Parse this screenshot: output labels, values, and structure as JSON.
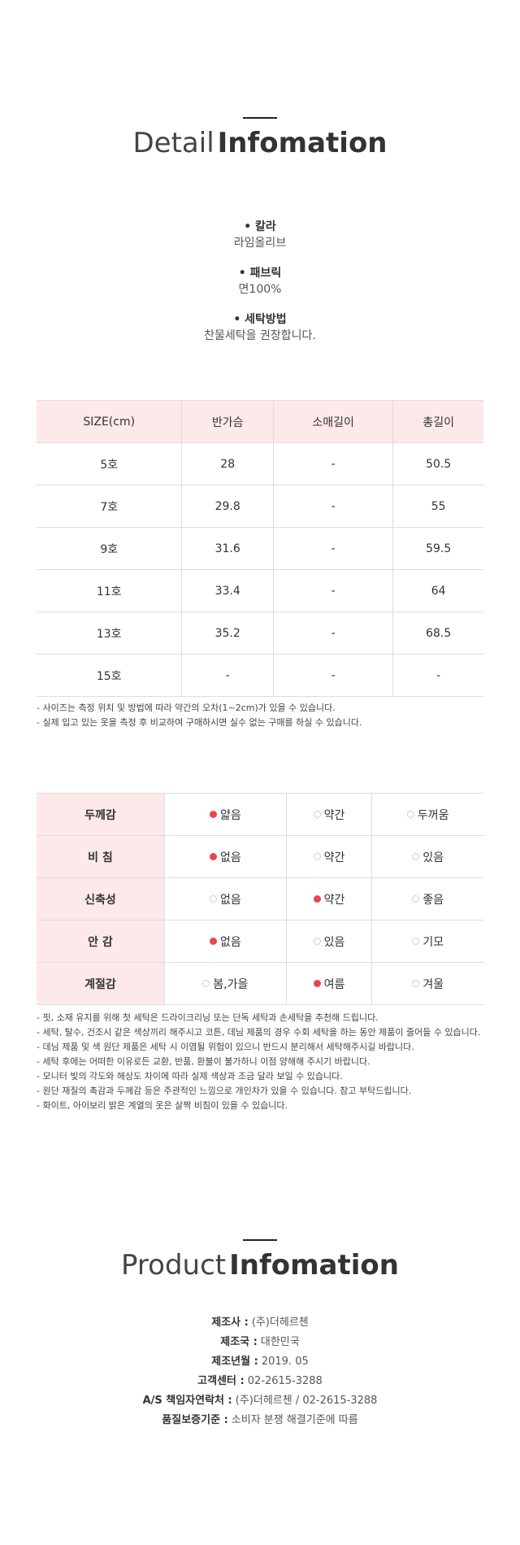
{
  "detail_header": {
    "title_light": "Detail",
    "title_bold": "Infomation"
  },
  "details": [
    {
      "label": "칼라",
      "value": "라임올리브"
    },
    {
      "label": "패브릭",
      "value": "면100%"
    },
    {
      "label": "세탁방법",
      "value": "찬물세탁을 권장합니다."
    }
  ],
  "size_table": {
    "header": [
      "SIZE(cm)",
      "반가슴",
      "소매길이",
      "총길이"
    ],
    "rows": [
      [
        "5호",
        "28",
        "-",
        "50.5"
      ],
      [
        "7호",
        "29.8",
        "-",
        "55"
      ],
      [
        "9호",
        "31.6",
        "-",
        "59.5"
      ],
      [
        "11호",
        "33.4",
        "-",
        "64"
      ],
      [
        "13호",
        "35.2",
        "-",
        "68.5"
      ],
      [
        "15호",
        "-",
        "-",
        "-"
      ]
    ]
  },
  "size_notes": [
    "- 사이즈는 측정 위치 및 방법에 따라 약간의 오차(1~2cm)가 있을 수 있습니다.",
    "- 실제 입고 있는 옷을 측정 후 비교하여 구매하시면 실수 없는 구매를 하실 수 있습니다."
  ],
  "feature_table": {
    "rows": [
      {
        "label": "두께감",
        "options": [
          "얇음",
          "약간",
          "두꺼움"
        ],
        "selected": 0
      },
      {
        "label": "비  침",
        "options": [
          "없음",
          "약간",
          "있음"
        ],
        "selected": 0
      },
      {
        "label": "신축성",
        "options": [
          "없음",
          "약간",
          "좋음"
        ],
        "selected": 1
      },
      {
        "label": "안  감",
        "options": [
          "없음",
          "있음",
          "기모"
        ],
        "selected": 0
      },
      {
        "label": "계절감",
        "options": [
          "봄,가을",
          "여름",
          "겨울"
        ],
        "selected": 1
      }
    ]
  },
  "care_notes": [
    "- 핏, 소재 유지를 위해 첫 세탁은 드라이크리닝 또는 단독 세탁과 손세탁을 추천해 드립니다.",
    "- 세탁, 탈수, 건조시 같은 색상끼리 해주시고 코튼, 데님 제품의 경우 수회 세탁을 하는 동안 제품이 줄어들 수 있습니다.",
    "- 데님 제품 및 색 원단 제품은 세탁 시 이염될 위험이 있으니 반드시 분리해서 세탁해주시길 바랍니다.",
    "- 세탁 후에는 어떠한 이유로든 교환, 반품, 환불이 불가하니 이점 양해해 주시기 바랍니다.",
    "- 모니터 빛의 각도와 해상도 차이에 따라 실제 색상과 조금 달라 보일 수 있습니다.",
    "- 원단 재질의 촉감과 두께감 등은 주관적인 느낌으로 개인차가 있을 수 있습니다. 참고 부탁드립니다.",
    "- 화이트, 아이보리 밝은 계열의 옷은 살짝 비침이 있을 수 있습니다."
  ],
  "product_header": {
    "title_light": "Product",
    "title_bold": "Infomation"
  },
  "product_info": [
    {
      "label": "제조사 :",
      "value": "(주)더헤르첸"
    },
    {
      "label": "제조국 :",
      "value": "대한민국"
    },
    {
      "label": "제조년월 :",
      "value": "2019. 05"
    },
    {
      "label": "고객센터 :",
      "value": "02-2615-3288"
    },
    {
      "label": "A/S 책임자연락처 :",
      "value": "(주)더헤르첸 / 02-2615-3288"
    },
    {
      "label": "품질보증기준 :",
      "value": "소비자 분쟁 해결기준에 따름"
    }
  ]
}
